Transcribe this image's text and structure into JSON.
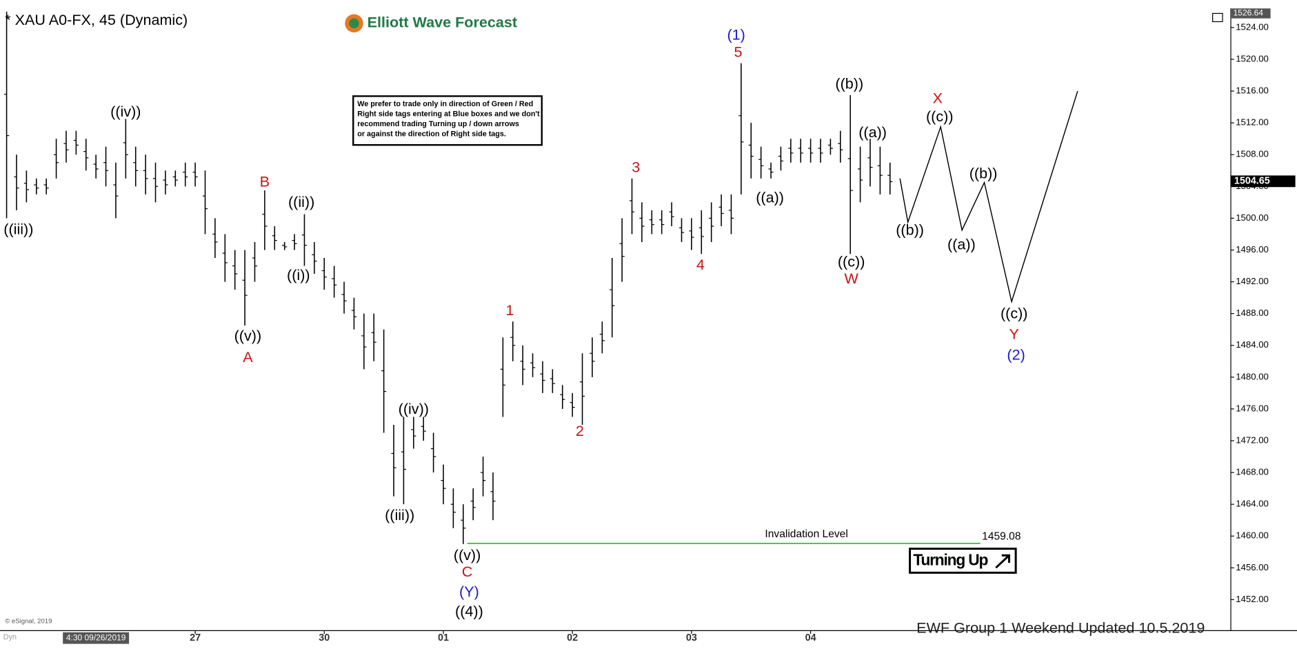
{
  "chart_data": {
    "type": "ohlc",
    "title": "* XAU A0-FX, 45 (Dynamic)",
    "brand": "Elliott Wave Forecast",
    "note": [
      "We prefer to trade only in direction of Green / Red",
      "Right side tags entering at Blue boxes and we don't",
      "recommend trading Turning up / down arrows",
      "or against the direction of Right side tags."
    ],
    "footer": "EWF Group 1  Weekend  Updated 10.5.2019",
    "copyright": "© eSignal, 2019",
    "mode": "Dyn",
    "signal": "Turning Up",
    "categories": [
      null,
      null,
      null,
      null,
      null,
      null,
      null,
      null,
      null,
      "4:30 09/26/2019",
      null,
      null,
      null,
      null,
      null,
      null,
      null,
      null,
      null,
      "27",
      null,
      null,
      null,
      null,
      null,
      null,
      null,
      null,
      null,
      null,
      null,
      null,
      "30",
      null,
      null,
      null,
      null,
      null,
      null,
      null,
      null,
      null,
      null,
      null,
      "01",
      null,
      null,
      null,
      null,
      null,
      null,
      null,
      null,
      null,
      null,
      null,
      null,
      "02",
      null,
      null,
      null,
      null,
      null,
      null,
      null,
      null,
      null,
      null,
      null,
      "03",
      null,
      null,
      null,
      null,
      null,
      null,
      null,
      null,
      null,
      null,
      null,
      "04",
      null,
      null,
      null,
      null,
      null,
      null,
      null,
      null
    ],
    "series": [
      {
        "name": "high",
        "color": "#000000",
        "values": [
          1526,
          1508,
          1506,
          1505,
          1505,
          1510,
          1511,
          1511,
          1510,
          1508,
          1509,
          1507,
          1512.5,
          1509,
          1508,
          1507,
          1506,
          1506,
          1507,
          1507,
          1506,
          1500,
          1498,
          1496,
          1496,
          1497,
          1503.5,
          1499,
          1497,
          1498,
          1500.5,
          1497,
          1495,
          1494,
          1492,
          1490,
          1488,
          1488,
          1486,
          1474,
          1475,
          1475,
          1475,
          1473,
          1469,
          1466,
          1464,
          1466,
          1470,
          1468,
          1485,
          1487,
          1484,
          1483,
          1482,
          1481,
          1479,
          1478,
          1483,
          1485,
          1487,
          1495,
          1500,
          1505,
          1502,
          1501,
          1501,
          1502,
          1500,
          1500,
          1501,
          1502,
          1503,
          1503,
          1519.5,
          1512,
          1509,
          1507,
          1509,
          1510,
          1510,
          1510,
          1510,
          1510,
          1511,
          1515.5,
          1509,
          1510,
          1509,
          1507
        ]
      },
      {
        "name": "low",
        "color": "#000000",
        "values": [
          1500,
          1501,
          1502,
          1503,
          1503,
          1505,
          1507,
          1508,
          1506,
          1505,
          1504,
          1500,
          1505,
          1504,
          1503,
          1502,
          1503,
          1504,
          1504,
          1504,
          1498,
          1495,
          1492,
          1491,
          1486.5,
          1492,
          1496,
          1496,
          1496,
          1496,
          1494,
          1493,
          1491,
          1490,
          1488,
          1486,
          1481,
          1482,
          1473,
          1465,
          1464,
          1471,
          1472,
          1468,
          1464,
          1461,
          1459,
          1462,
          1465,
          1462,
          1475,
          1482,
          1479,
          1480,
          1478,
          1478,
          1476,
          1475,
          1474,
          1480,
          1483,
          1485,
          1492,
          1498,
          1497,
          1498,
          1498,
          1499,
          1497,
          1496,
          1495.5,
          1497,
          1499,
          1498,
          1503,
          1505,
          1505,
          1505,
          1506,
          1507,
          1507,
          1507,
          1507,
          1508,
          1507,
          1495.5,
          1502,
          1504,
          1503,
          1503
        ]
      }
    ],
    "projection": {
      "x": [
        90,
        90.8,
        94.1,
        96.25,
        98.5,
        101.25,
        107.9
      ],
      "values": [
        1505,
        1499.5,
        1511.5,
        1498.5,
        1504.5,
        1489.5,
        1516
      ],
      "color": "#000000"
    },
    "annotations": [
      {
        "text": "(1)",
        "x": 73.5,
        "y": 1522.95,
        "color": "#1a1acc"
      },
      {
        "text": "5",
        "x": 73.7,
        "y": 1520.8,
        "color": "#cc1111"
      },
      {
        "text": "((iii))",
        "x": 1.2,
        "y": 1498.5,
        "color": "#000000"
      },
      {
        "text": "((iv))",
        "x": 12,
        "y": 1513.3,
        "color": "#000000"
      },
      {
        "text": "B",
        "x": 26,
        "y": 1504.5,
        "color": "#cc1111"
      },
      {
        "text": "((ii))",
        "x": 29.7,
        "y": 1501.9,
        "color": "#000000"
      },
      {
        "text": "((i))",
        "x": 29.4,
        "y": 1492.7,
        "color": "#000000"
      },
      {
        "text": "((v))",
        "x": 24.3,
        "y": 1485.1,
        "color": "#000000"
      },
      {
        "text": "A",
        "x": 24.3,
        "y": 1482.4,
        "color": "#cc1111"
      },
      {
        "text": "((iv))",
        "x": 41,
        "y": 1475.9,
        "color": "#000000"
      },
      {
        "text": "((iii))",
        "x": 39.6,
        "y": 1462.5,
        "color": "#000000"
      },
      {
        "text": "((v))",
        "x": 46.4,
        "y": 1457.5,
        "color": "#000000"
      },
      {
        "text": "C",
        "x": 46.4,
        "y": 1455.4,
        "color": "#cc1111"
      },
      {
        "text": "(Y)",
        "x": 46.6,
        "y": 1452.9,
        "color": "#1a1acc"
      },
      {
        "text": "((4))",
        "x": 46.6,
        "y": 1450.4,
        "color": "#000000"
      },
      {
        "text": "1",
        "x": 50.7,
        "y": 1488.3,
        "color": "#cc1111"
      },
      {
        "text": "2",
        "x": 57.75,
        "y": 1473.1,
        "color": "#cc1111"
      },
      {
        "text": "3",
        "x": 63.4,
        "y": 1506.3,
        "color": "#cc1111"
      },
      {
        "text": "4",
        "x": 69.9,
        "y": 1494,
        "color": "#cc1111"
      },
      {
        "text": "((a))",
        "x": 76.9,
        "y": 1502.5,
        "color": "#000000"
      },
      {
        "text": "((b))",
        "x": 84.9,
        "y": 1516.8,
        "color": "#000000"
      },
      {
        "text": "((a))",
        "x": 87.25,
        "y": 1510.7,
        "color": "#000000"
      },
      {
        "text": "((c))",
        "x": 85.1,
        "y": 1494.4,
        "color": "#000000"
      },
      {
        "text": "W",
        "x": 85.1,
        "y": 1492.3,
        "color": "#cc1111"
      },
      {
        "text": "X",
        "x": 93.8,
        "y": 1515,
        "color": "#cc1111"
      },
      {
        "text": "((c))",
        "x": 94,
        "y": 1512.7,
        "color": "#000000"
      },
      {
        "text": "((b))",
        "x": 91,
        "y": 1498.4,
        "color": "#000000"
      },
      {
        "text": "((b))",
        "x": 98.4,
        "y": 1505.5,
        "color": "#000000"
      },
      {
        "text": "((a))",
        "x": 96.2,
        "y": 1496.6,
        "color": "#000000"
      },
      {
        "text": "((c))",
        "x": 101.5,
        "y": 1487.9,
        "color": "#000000"
      },
      {
        "text": "Y",
        "x": 101.5,
        "y": 1485.3,
        "color": "#cc1111"
      },
      {
        "text": "(2)",
        "x": 101.7,
        "y": 1482.7,
        "color": "#1a1acc"
      }
    ],
    "invalidation": {
      "label": "Invalidation Level",
      "value": 1459.08,
      "value_label": "1459.08",
      "x": [
        46.4,
        98.1
      ],
      "color": "#22cc22"
    },
    "last_price": {
      "value": 1504.65,
      "value_label": "1504.65"
    },
    "top_price": {
      "value": 1526.64,
      "value_label": "1526.64"
    },
    "ylim": [
      1448.1,
      1526.4
    ],
    "yticks": [
      {
        "value": 1452,
        "label": "1452.00"
      },
      {
        "value": 1456,
        "label": "1456.00"
      },
      {
        "value": 1460,
        "label": "1460.00"
      },
      {
        "value": 1464,
        "label": "1464.00"
      },
      {
        "value": 1468,
        "label": "1468.00"
      },
      {
        "value": 1472,
        "label": "1472.00"
      },
      {
        "value": 1476,
        "label": "1476.00"
      },
      {
        "value": 1480,
        "label": "1480.00"
      },
      {
        "value": 1484,
        "label": "1484.00"
      },
      {
        "value": 1488,
        "label": "1488.00"
      },
      {
        "value": 1492,
        "label": "1492.00"
      },
      {
        "value": 1496,
        "label": "1496.00"
      },
      {
        "value": 1500,
        "label": "1500.00"
      },
      {
        "value": 1504,
        "label": "1504.00"
      },
      {
        "value": 1508,
        "label": "1508.00"
      },
      {
        "value": 1512,
        "label": "1512.00"
      },
      {
        "value": 1516,
        "label": "1516.00"
      },
      {
        "value": 1520,
        "label": "1520.00"
      },
      {
        "value": 1524,
        "label": "1524.00"
      }
    ],
    "grid": false
  }
}
